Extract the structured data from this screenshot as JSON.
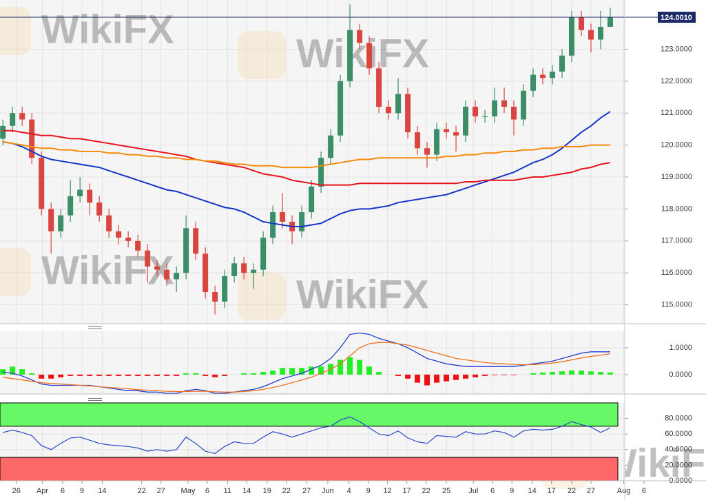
{
  "chart_data": [
    {
      "type": "candlestick",
      "open": [
        120.2,
        120.6,
        121.0,
        120.8,
        119.6,
        118.0,
        117.3,
        117.8,
        118.4,
        118.6,
        118.2,
        117.8,
        117.3,
        117.1,
        117.0,
        116.7,
        116.2,
        116.1,
        115.8,
        116.0,
        117.4,
        116.6,
        115.4,
        115.1,
        115.9,
        116.3,
        116.0,
        116.1,
        117.1,
        117.9,
        117.6,
        117.3,
        117.9,
        118.7,
        119.6,
        120.3,
        122.0,
        123.6,
        123.2,
        122.4,
        121.2,
        121.0,
        121.6,
        120.4,
        119.9,
        119.7,
        120.5,
        120.4,
        120.3,
        121.2,
        120.9,
        120.9,
        121.4,
        121.2,
        120.8,
        121.7,
        122.2,
        122.1,
        122.3,
        122.8,
        124.0,
        123.6,
        123.3,
        123.7
      ],
      "high": [
        120.8,
        121.2,
        121.2,
        121.0,
        119.8,
        118.2,
        118.0,
        118.9,
        119.0,
        118.8,
        118.4,
        118.0,
        117.5,
        117.3,
        117.2,
        116.9,
        116.4,
        116.3,
        116.2,
        117.8,
        117.6,
        116.8,
        115.6,
        116.1,
        116.5,
        116.5,
        116.3,
        117.3,
        118.1,
        118.5,
        117.8,
        118.1,
        118.9,
        119.8,
        120.5,
        122.2,
        124.4,
        123.8,
        123.4,
        122.6,
        121.4,
        122.1,
        121.8,
        120.6,
        120.1,
        120.7,
        120.7,
        120.6,
        121.4,
        121.4,
        121.1,
        121.8,
        121.8,
        121.4,
        121.9,
        122.4,
        122.4,
        122.5,
        123.0,
        124.2,
        124.2,
        123.8,
        124.2,
        124.3
      ],
      "low": [
        120.0,
        120.4,
        120.6,
        119.4,
        117.8,
        116.6,
        117.1,
        117.6,
        118.2,
        117.8,
        117.6,
        117.1,
        116.9,
        116.8,
        116.5,
        115.7,
        115.9,
        115.6,
        115.4,
        115.8,
        116.4,
        115.2,
        114.7,
        114.9,
        115.7,
        115.8,
        115.5,
        115.9,
        116.9,
        117.4,
        116.9,
        117.1,
        117.7,
        118.5,
        119.4,
        120.1,
        121.8,
        123.0,
        122.2,
        121.0,
        120.8,
        120.8,
        120.2,
        119.7,
        119.3,
        119.5,
        120.2,
        119.8,
        120.1,
        120.7,
        120.7,
        120.7,
        121.0,
        120.3,
        120.6,
        121.5,
        121.9,
        121.9,
        122.1,
        122.6,
        123.4,
        122.9,
        123.0,
        123.8
      ],
      "close": [
        120.6,
        121.0,
        120.8,
        119.6,
        118.0,
        117.3,
        117.8,
        118.4,
        118.6,
        118.2,
        117.8,
        117.3,
        117.1,
        117.0,
        116.7,
        116.2,
        116.1,
        115.8,
        116.0,
        117.4,
        116.6,
        115.4,
        115.1,
        115.9,
        116.3,
        116.0,
        116.1,
        117.1,
        117.9,
        117.6,
        117.3,
        117.9,
        118.7,
        119.6,
        120.3,
        122.0,
        123.6,
        123.2,
        122.4,
        121.2,
        121.0,
        121.6,
        120.4,
        119.9,
        119.7,
        120.5,
        120.4,
        120.3,
        121.2,
        120.9,
        120.9,
        121.4,
        121.2,
        120.8,
        121.7,
        122.2,
        122.1,
        122.3,
        122.8,
        124.0,
        123.6,
        123.3,
        123.7,
        124.0
      ],
      "up_color": "#3b8e68",
      "down_color": "#d9453f",
      "series": [
        {
          "color": "#1535c8",
          "values": [
            120.1,
            120.05,
            119.95,
            119.8,
            119.65,
            119.55,
            119.5,
            119.45,
            119.4,
            119.35,
            119.3,
            119.2,
            119.1,
            119.0,
            118.9,
            118.8,
            118.7,
            118.6,
            118.55,
            118.45,
            118.35,
            118.25,
            118.15,
            118.05,
            118.0,
            117.9,
            117.75,
            117.6,
            117.55,
            117.5,
            117.45,
            117.45,
            117.5,
            117.55,
            117.7,
            117.85,
            117.95,
            118.0,
            118.0,
            118.05,
            118.1,
            118.2,
            118.25,
            118.3,
            118.35,
            118.4,
            118.45,
            118.55,
            118.65,
            118.75,
            118.85,
            118.95,
            119.05,
            119.15,
            119.3,
            119.45,
            119.55,
            119.7,
            119.9,
            120.15,
            120.4,
            120.6,
            120.85,
            121.05
          ]
        },
        {
          "color": "#e8141c",
          "values": [
            120.45,
            120.45,
            120.4,
            120.35,
            120.3,
            120.3,
            120.25,
            120.2,
            120.2,
            120.15,
            120.1,
            120.05,
            120.0,
            119.95,
            119.9,
            119.85,
            119.8,
            119.75,
            119.7,
            119.65,
            119.55,
            119.5,
            119.45,
            119.4,
            119.35,
            119.3,
            119.2,
            119.1,
            119.05,
            119.0,
            118.9,
            118.85,
            118.8,
            118.75,
            118.75,
            118.75,
            118.75,
            118.8,
            118.8,
            118.8,
            118.8,
            118.8,
            118.8,
            118.8,
            118.8,
            118.8,
            118.8,
            118.8,
            118.85,
            118.85,
            118.9,
            118.9,
            118.9,
            118.9,
            118.95,
            119.0,
            119.0,
            119.05,
            119.1,
            119.15,
            119.25,
            119.3,
            119.4,
            119.45
          ]
        },
        {
          "color": "#f58a0c",
          "values": [
            120.1,
            120.05,
            120.0,
            119.95,
            119.9,
            119.9,
            119.85,
            119.85,
            119.8,
            119.8,
            119.8,
            119.75,
            119.75,
            119.7,
            119.7,
            119.65,
            119.65,
            119.6,
            119.6,
            119.55,
            119.55,
            119.5,
            119.5,
            119.45,
            119.4,
            119.4,
            119.35,
            119.35,
            119.35,
            119.3,
            119.3,
            119.3,
            119.3,
            119.35,
            119.4,
            119.45,
            119.5,
            119.55,
            119.55,
            119.6,
            119.6,
            119.6,
            119.6,
            119.6,
            119.6,
            119.6,
            119.65,
            119.65,
            119.7,
            119.7,
            119.75,
            119.75,
            119.8,
            119.8,
            119.85,
            119.85,
            119.9,
            119.9,
            119.95,
            119.95,
            119.95,
            120.0,
            120.0,
            120.0
          ]
        }
      ],
      "last_price": {
        "value": 124.001,
        "label": "124.0010"
      },
      "watermark": "WikiFX",
      "xlim": [
        -0.3,
        64.5
      ],
      "xticks": [
        {
          "value": 1.4,
          "label": "26"
        },
        {
          "value": 4.1,
          "label": "Apr"
        },
        {
          "value": 6.2,
          "label": "6"
        },
        {
          "value": 8.2,
          "label": "9"
        },
        {
          "value": 10.3,
          "label": "14"
        },
        {
          "value": 14.4,
          "label": "22"
        },
        {
          "value": 16.4,
          "label": "27"
        },
        {
          "value": 19.2,
          "label": "May"
        },
        {
          "value": 21.2,
          "label": "6"
        },
        {
          "value": 23.3,
          "label": "11"
        },
        {
          "value": 25.3,
          "label": "14"
        },
        {
          "value": 27.4,
          "label": "19"
        },
        {
          "value": 29.4,
          "label": "22"
        },
        {
          "value": 31.5,
          "label": "27"
        },
        {
          "value": 33.7,
          "label": "Jun"
        },
        {
          "value": 35.9,
          "label": "4"
        },
        {
          "value": 37.9,
          "label": "9"
        },
        {
          "value": 39.9,
          "label": "12"
        },
        {
          "value": 41.9,
          "label": "17"
        },
        {
          "value": 43.9,
          "label": "22"
        },
        {
          "value": 46.0,
          "label": "25"
        },
        {
          "value": 48.8,
          "label": "Jul"
        },
        {
          "value": 50.8,
          "label": "6"
        },
        {
          "value": 52.8,
          "label": "9"
        },
        {
          "value": 54.9,
          "label": "14"
        },
        {
          "value": 56.9,
          "label": "17"
        },
        {
          "value": 59.0,
          "label": "22"
        },
        {
          "value": 61.0,
          "label": "27"
        },
        {
          "value": 64.4,
          "label": "Aug"
        },
        {
          "value": 66.5,
          "label": "6"
        }
      ],
      "ylim": [
        114.41,
        124.54
      ],
      "yticks": [
        {
          "value": 115,
          "label": "115.0000"
        },
        {
          "value": 116,
          "label": "116.0000"
        },
        {
          "value": 117,
          "label": "117.0000"
        },
        {
          "value": 118,
          "label": "118.0000"
        },
        {
          "value": 119,
          "label": "119.0000"
        },
        {
          "value": 120,
          "label": "120.0000"
        },
        {
          "value": 121,
          "label": "121.0000"
        },
        {
          "value": 122,
          "label": "122.0000"
        },
        {
          "value": 123,
          "label": "123.0000"
        }
      ],
      "grid": true
    },
    {
      "type": "macd",
      "histogram": [
        0.2,
        0.3,
        0.2,
        0.05,
        -0.15,
        -0.15,
        -0.1,
        -0.05,
        -0.05,
        -0.05,
        -0.05,
        -0.05,
        -0.05,
        -0.05,
        -0.05,
        -0.05,
        -0.05,
        -0.05,
        -0.05,
        0.05,
        0.05,
        -0.05,
        -0.1,
        -0.05,
        0,
        0.05,
        0.05,
        0.1,
        0.15,
        0.25,
        0.25,
        0.25,
        0.3,
        0.3,
        0.4,
        0.55,
        0.65,
        0.55,
        0.3,
        0.1,
        0,
        -0.05,
        -0.15,
        -0.3,
        -0.4,
        -0.3,
        -0.25,
        -0.2,
        -0.15,
        -0.1,
        -0.05,
        -0.02,
        -0.02,
        -0.02,
        0,
        0.05,
        0.08,
        0.1,
        0.12,
        0.15,
        0.15,
        0.12,
        0.1,
        0.08
      ],
      "positive_color": "#22ee22",
      "negative_color": "#ee1111",
      "series": [
        {
          "color": "#2040d0",
          "values": [
            0.1,
            0.05,
            -0.05,
            -0.2,
            -0.35,
            -0.4,
            -0.4,
            -0.4,
            -0.4,
            -0.4,
            -0.45,
            -0.5,
            -0.55,
            -0.6,
            -0.6,
            -0.65,
            -0.65,
            -0.7,
            -0.7,
            -0.6,
            -0.55,
            -0.6,
            -0.7,
            -0.7,
            -0.65,
            -0.6,
            -0.55,
            -0.45,
            -0.3,
            -0.15,
            -0.05,
            0.05,
            0.2,
            0.35,
            0.6,
            1.0,
            1.5,
            1.55,
            1.5,
            1.35,
            1.25,
            1.15,
            1.0,
            0.8,
            0.6,
            0.5,
            0.4,
            0.35,
            0.3,
            0.3,
            0.3,
            0.3,
            0.3,
            0.3,
            0.35,
            0.4,
            0.45,
            0.5,
            0.6,
            0.7,
            0.8,
            0.85,
            0.85,
            0.85
          ]
        },
        {
          "color": "#f07020",
          "values": [
            -0.1,
            -0.15,
            -0.2,
            -0.25,
            -0.3,
            -0.33,
            -0.35,
            -0.37,
            -0.4,
            -0.42,
            -0.45,
            -0.48,
            -0.5,
            -0.53,
            -0.56,
            -0.58,
            -0.6,
            -0.62,
            -0.63,
            -0.63,
            -0.62,
            -0.62,
            -0.64,
            -0.65,
            -0.65,
            -0.63,
            -0.6,
            -0.55,
            -0.48,
            -0.4,
            -0.3,
            -0.2,
            -0.1,
            0.05,
            0.2,
            0.4,
            0.7,
            1.0,
            1.15,
            1.2,
            1.2,
            1.15,
            1.1,
            1.0,
            0.9,
            0.8,
            0.7,
            0.6,
            0.55,
            0.5,
            0.45,
            0.42,
            0.4,
            0.38,
            0.37,
            0.37,
            0.4,
            0.43,
            0.48,
            0.55,
            0.62,
            0.68,
            0.72,
            0.78
          ]
        }
      ],
      "ylim": [
        -0.72,
        1.64
      ],
      "yticks": [
        {
          "value": 0,
          "label": "0.0000"
        },
        {
          "value": 1,
          "label": "1.0000"
        }
      ]
    },
    {
      "type": "rsi",
      "zones": [
        {
          "from": 70,
          "to": 100,
          "color": "#66f866"
        },
        {
          "from": 0,
          "to": 30,
          "color": "#ff6868"
        }
      ],
      "series": [
        {
          "color": "#2848c8",
          "values": [
            62,
            65,
            62,
            58,
            45,
            40,
            48,
            55,
            56,
            52,
            48,
            46,
            45,
            44,
            42,
            38,
            40,
            38,
            40,
            56,
            48,
            38,
            35,
            44,
            50,
            48,
            48,
            56,
            63,
            60,
            56,
            60,
            64,
            68,
            70,
            78,
            82,
            76,
            68,
            60,
            58,
            64,
            55,
            50,
            48,
            58,
            57,
            56,
            63,
            60,
            60,
            64,
            62,
            56,
            64,
            66,
            65,
            66,
            70,
            76,
            72,
            69,
            62,
            68
          ]
        }
      ],
      "ylim": [
        0,
        100
      ],
      "yticks": [
        {
          "value": 0,
          "label": "0.0000"
        },
        {
          "value": 20,
          "label": "20.0000"
        },
        {
          "value": 40,
          "label": "40.0000"
        },
        {
          "value": 60,
          "label": "60.0000"
        },
        {
          "value": 80,
          "label": "80.0000"
        }
      ]
    }
  ]
}
